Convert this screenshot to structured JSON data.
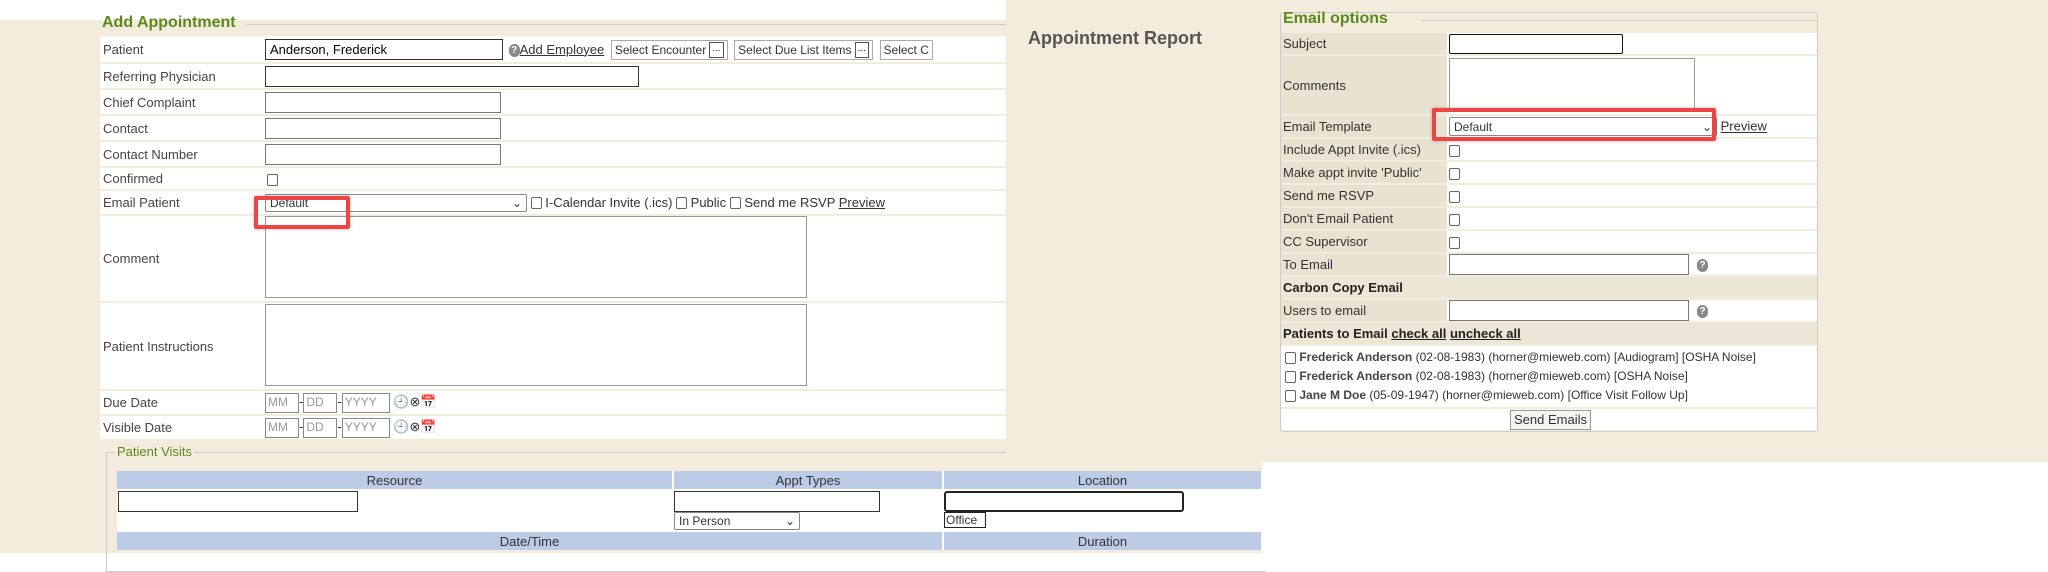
{
  "add_appointment": {
    "title": "Add Appointment",
    "fields": {
      "patient": {
        "label": "Patient",
        "value": "Anderson, Frederick",
        "add_employee": "Add Employee",
        "select_encounter": "Select Encounter",
        "select_due": "Select Due List Items",
        "select_c": "Select C",
        "dots": "..."
      },
      "referring": {
        "label": "Referring Physician",
        "value": ""
      },
      "chief": {
        "label": "Chief Complaint",
        "value": ""
      },
      "contact": {
        "label": "Contact",
        "value": ""
      },
      "contact_number": {
        "label": "Contact Number",
        "value": ""
      },
      "confirmed": {
        "label": "Confirmed",
        "checked": false
      },
      "email_patient": {
        "label": "Email Patient",
        "selected": "Default",
        "icalendar": "I-Calendar Invite (.ics)",
        "public": "Public",
        "rsvp": "Send me RSVP",
        "preview": "Preview"
      },
      "comment": {
        "label": "Comment",
        "value": ""
      },
      "instructions": {
        "label": "Patient Instructions",
        "value": ""
      },
      "due_date": {
        "label": "Due Date",
        "mm": "MM",
        "dd": "DD",
        "yyyy": "YYYY"
      },
      "visible_date": {
        "label": "Visible Date",
        "mm": "MM",
        "dd": "DD",
        "yyyy": "YYYY"
      }
    },
    "visits": {
      "title": "Patient Visits",
      "headers": [
        "Resource",
        "Appt Types",
        "Location"
      ],
      "appt_type": "In Person",
      "location_option": "Office",
      "headers2": [
        "Date/Time",
        "Duration"
      ]
    }
  },
  "report": {
    "title": "Appointment Report",
    "email_options": {
      "title": "Email options",
      "subject": "Subject",
      "comments": "Comments",
      "template": "Email Template",
      "template_value": "Default",
      "preview": "Preview",
      "include_invite": "Include Appt Invite (.ics)",
      "make_public": "Make appt invite 'Public'",
      "rsvp": "Send me RSVP",
      "dont_email": "Don't Email Patient",
      "cc_supervisor": "CC Supervisor",
      "to_email": "To Email",
      "carbon_copy": "Carbon Copy Email",
      "users_to_email": "Users to email",
      "patients_to_email": "Patients to Email",
      "check_all": "check all",
      "uncheck_all": "uncheck all",
      "patients": [
        {
          "name": "Frederick Anderson",
          "details": "(02-08-1983) (horner@mieweb.com) [Audiogram] [OSHA Noise]"
        },
        {
          "name": "Frederick Anderson",
          "details": "(02-08-1983) (horner@mieweb.com) [OSHA Noise]"
        },
        {
          "name": "Jane M Doe",
          "details": "(05-09-1947) (horner@mieweb.com) [Office Visit Follow Up]"
        }
      ],
      "send": "Send Emails"
    }
  },
  "colors": {
    "highlight": "#ef4444",
    "legend": "#5a8a1a",
    "header": "#bccbe6",
    "panel": "#f3ecdd"
  }
}
